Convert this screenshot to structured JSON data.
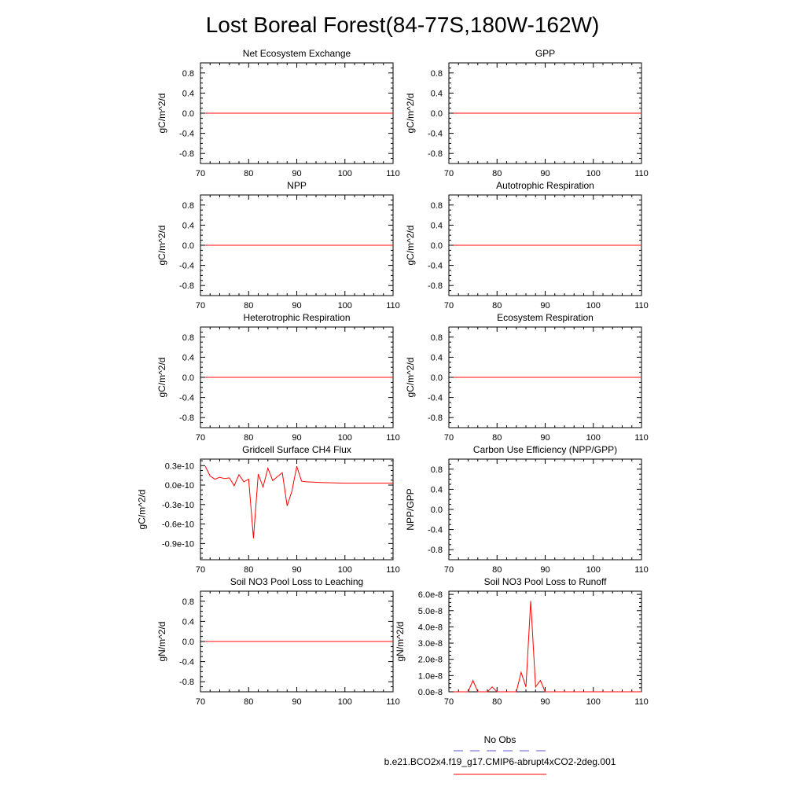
{
  "figure": {
    "title": "Lost Boreal Forest(84-77S,180W-162W)",
    "colors": {
      "model_line": "#ff0000",
      "obs_line": "#5b5bd6",
      "axis": "#000000"
    },
    "legend": {
      "obs_label": "No Obs",
      "model_label": "b.e21.BCO2x4.f19_g17.CMIP6-abrupt4xCO2-2deg.001"
    }
  },
  "chart_data": [
    {
      "type": "line",
      "title": "Net Ecosystem Exchange",
      "ylabel": "gC/m^2/d",
      "xlim": [
        70,
        110
      ],
      "ylim": [
        -1.0,
        1.0
      ],
      "xticks": [
        "70",
        "80",
        "90",
        "100",
        "110"
      ],
      "yticks": [
        "0.8",
        "0.4",
        "0.0",
        "-0.4",
        "-0.8"
      ],
      "ytick_values": [
        0.8,
        0.4,
        0.0,
        -0.4,
        -0.8
      ],
      "series": [
        {
          "name": "model",
          "x": [
            71,
            110
          ],
          "y": [
            0,
            0
          ]
        }
      ]
    },
    {
      "type": "line",
      "title": "GPP",
      "ylabel": "gC/m^2/d",
      "xlim": [
        70,
        110
      ],
      "ylim": [
        -1.0,
        1.0
      ],
      "xticks": [
        "70",
        "80",
        "90",
        "100",
        "110"
      ],
      "yticks": [
        "0.8",
        "0.4",
        "0.0",
        "-0.4",
        "-0.8"
      ],
      "ytick_values": [
        0.8,
        0.4,
        0.0,
        -0.4,
        -0.8
      ],
      "series": [
        {
          "name": "model",
          "x": [
            71,
            110
          ],
          "y": [
            0,
            0
          ]
        }
      ]
    },
    {
      "type": "line",
      "title": "NPP",
      "ylabel": "gC/m^2/d",
      "xlim": [
        70,
        110
      ],
      "ylim": [
        -1.0,
        1.0
      ],
      "xticks": [
        "70",
        "80",
        "90",
        "100",
        "110"
      ],
      "yticks": [
        "0.8",
        "0.4",
        "0.0",
        "-0.4",
        "-0.8"
      ],
      "ytick_values": [
        0.8,
        0.4,
        0.0,
        -0.4,
        -0.8
      ],
      "series": [
        {
          "name": "model",
          "x": [
            71,
            110
          ],
          "y": [
            0,
            0
          ]
        }
      ]
    },
    {
      "type": "line",
      "title": "Autotrophic Respiration",
      "ylabel": "gC/m^2/d",
      "xlim": [
        70,
        110
      ],
      "ylim": [
        -1.0,
        1.0
      ],
      "xticks": [
        "70",
        "80",
        "90",
        "100",
        "110"
      ],
      "yticks": [
        "0.8",
        "0.4",
        "0.0",
        "-0.4",
        "-0.8"
      ],
      "ytick_values": [
        0.8,
        0.4,
        0.0,
        -0.4,
        -0.8
      ],
      "series": [
        {
          "name": "model",
          "x": [
            71,
            110
          ],
          "y": [
            0,
            0
          ]
        }
      ]
    },
    {
      "type": "line",
      "title": "Heterotrophic Respiration",
      "ylabel": "gC/m^2/d",
      "xlim": [
        70,
        110
      ],
      "ylim": [
        -1.0,
        1.0
      ],
      "xticks": [
        "70",
        "80",
        "90",
        "100",
        "110"
      ],
      "yticks": [
        "0.8",
        "0.4",
        "0.0",
        "-0.4",
        "-0.8"
      ],
      "ytick_values": [
        0.8,
        0.4,
        0.0,
        -0.4,
        -0.8
      ],
      "series": [
        {
          "name": "model",
          "x": [
            71,
            110
          ],
          "y": [
            0,
            0
          ]
        }
      ]
    },
    {
      "type": "line",
      "title": "Ecosystem Respiration",
      "ylabel": "gC/m^2/d",
      "xlim": [
        70,
        110
      ],
      "ylim": [
        -1.0,
        1.0
      ],
      "xticks": [
        "70",
        "80",
        "90",
        "100",
        "110"
      ],
      "yticks": [
        "0.8",
        "0.4",
        "0.0",
        "-0.4",
        "-0.8"
      ],
      "ytick_values": [
        0.8,
        0.4,
        0.0,
        -0.4,
        -0.8
      ],
      "series": [
        {
          "name": "model",
          "x": [
            71,
            110
          ],
          "y": [
            0,
            0
          ]
        }
      ]
    },
    {
      "type": "line",
      "title": "Gridcell Surface CH4 Flux",
      "ylabel": "gC/m^2/d",
      "xlim": [
        70,
        110
      ],
      "ylim": [
        -1.15,
        0.4
      ],
      "xticks": [
        "70",
        "80",
        "90",
        "100",
        "110"
      ],
      "yticks": [
        "0.3e-10",
        "0.0e-10",
        "-0.3e-10",
        "-0.6e-10",
        "-0.9e-10"
      ],
      "ytick_values": [
        0.3,
        0.0,
        -0.3,
        -0.6,
        -0.9
      ],
      "series": [
        {
          "name": "model",
          "x": [
            71,
            72,
            73,
            74,
            75,
            76,
            77,
            78,
            79,
            80,
            81,
            82,
            83,
            84,
            85,
            86,
            87,
            88,
            89,
            90,
            91,
            92,
            95,
            100,
            105,
            110
          ],
          "y": [
            0.29,
            0.14,
            0.09,
            0.12,
            0.1,
            0.11,
            -0.01,
            0.16,
            0.05,
            0.09,
            -0.82,
            0.17,
            -0.03,
            0.26,
            0.07,
            0.13,
            0.19,
            -0.32,
            -0.09,
            0.29,
            0.06,
            0.05,
            0.04,
            0.03,
            0.03,
            0.03
          ]
        }
      ]
    },
    {
      "type": "line",
      "title": "Carbon Use Efficiency (NPP/GPP)",
      "ylabel": "NPP/GPP",
      "xlim": [
        70,
        110
      ],
      "ylim": [
        -1.0,
        1.0
      ],
      "xticks": [
        "70",
        "80",
        "90",
        "100",
        "110"
      ],
      "yticks": [
        "0.8",
        "0.4",
        "0.0",
        "-0.4",
        "-0.8"
      ],
      "ytick_values": [
        0.8,
        0.4,
        0.0,
        -0.4,
        -0.8
      ],
      "series": []
    },
    {
      "type": "line",
      "title": "Soil NO3 Pool Loss to Leaching",
      "ylabel": "gN/m^2/d",
      "xlim": [
        70,
        110
      ],
      "ylim": [
        -1.0,
        1.0
      ],
      "xticks": [
        "70",
        "80",
        "90",
        "100",
        "110"
      ],
      "yticks": [
        "0.8",
        "0.4",
        "0.0",
        "-0.4",
        "-0.8"
      ],
      "ytick_values": [
        0.8,
        0.4,
        0.0,
        -0.4,
        -0.8
      ],
      "series": [
        {
          "name": "model",
          "x": [
            71,
            110
          ],
          "y": [
            0,
            0
          ]
        }
      ]
    },
    {
      "type": "line",
      "title": "Soil NO3 Pool Loss to Runoff",
      "ylabel": "gN/m^2/d",
      "xlim": [
        70,
        110
      ],
      "ylim": [
        0,
        6.2
      ],
      "xticks": [
        "70",
        "80",
        "90",
        "100",
        "110"
      ],
      "yticks": [
        "6.0e-8",
        "5.0e-8",
        "4.0e-8",
        "3.0e-8",
        "2.0e-8",
        "1.0e-8",
        "0.0e-8"
      ],
      "ytick_values": [
        6,
        5,
        4,
        3,
        2,
        1,
        0
      ],
      "series": [
        {
          "name": "model",
          "x": [
            71,
            72,
            73,
            74,
            75,
            76,
            77,
            78,
            79,
            80,
            81,
            82,
            83,
            84,
            85,
            86,
            87,
            88,
            89,
            90,
            91,
            92,
            95,
            100,
            105,
            110
          ],
          "y": [
            0,
            0,
            0,
            0,
            0.7,
            0,
            0,
            0,
            0.3,
            0,
            0,
            0,
            0,
            0,
            1.2,
            0.3,
            5.6,
            0.3,
            0.7,
            0,
            0,
            0,
            0,
            0,
            0,
            0
          ]
        }
      ]
    }
  ]
}
